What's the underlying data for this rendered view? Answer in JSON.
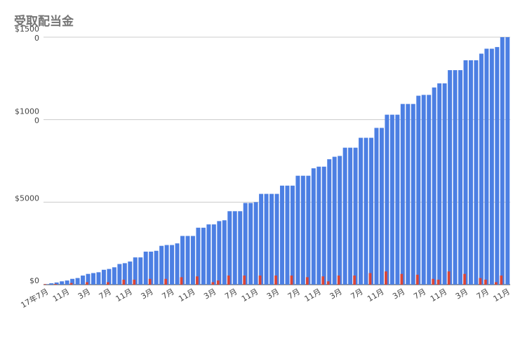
{
  "chart_data": {
    "type": "bar",
    "title": "受取配当金",
    "categories": [
      "17年7月",
      null,
      null,
      null,
      "11月",
      null,
      null,
      null,
      "3月",
      null,
      null,
      null,
      "7月",
      null,
      null,
      null,
      "11月",
      null,
      null,
      null,
      "3月",
      null,
      null,
      null,
      "7月",
      null,
      null,
      null,
      "11月",
      null,
      null,
      null,
      "3月",
      null,
      null,
      null,
      "7月",
      null,
      null,
      null,
      "11月",
      null,
      null,
      null,
      "3月",
      null,
      null,
      null,
      "7月",
      null,
      null,
      null,
      "11月",
      null,
      null,
      null,
      "3月",
      null,
      null,
      null,
      "7月",
      null,
      null,
      null,
      "11月",
      null,
      null,
      null,
      "3月",
      null,
      null,
      null,
      "7月",
      null,
      null,
      null,
      "11月",
      null,
      null,
      null,
      "3月",
      null,
      null,
      null,
      "7月",
      null,
      null,
      null,
      "11月"
    ],
    "series": [
      {
        "color": "#4c7fe3",
        "values": [
          30,
          80,
          130,
          200,
          250,
          350,
          400,
          550,
          650,
          700,
          750,
          900,
          950,
          1050,
          1250,
          1300,
          1400,
          1650,
          1650,
          2000,
          2000,
          2050,
          2350,
          2400,
          2400,
          2500,
          2950,
          2950,
          2950,
          3450,
          3450,
          3650,
          3650,
          3850,
          3900,
          4450,
          4450,
          4450,
          4950,
          4950,
          5000,
          5500,
          5500,
          5500,
          5500,
          6000,
          6000,
          6000,
          6600,
          6600,
          6600,
          7050,
          7150,
          7150,
          7600,
          7750,
          7800,
          8300,
          8300,
          8300,
          8900,
          8900,
          8900,
          9500,
          9500,
          10300,
          10300,
          10300,
          10950,
          10950,
          10950,
          11450,
          11500,
          11500,
          11950,
          12200,
          12200,
          13000,
          13000,
          13000,
          13600,
          13600,
          13600,
          14000,
          14300,
          14300,
          14400,
          15000,
          15000
        ]
      },
      {
        "color": "#db4437",
        "values": [
          30,
          0,
          40,
          0,
          0,
          100,
          0,
          0,
          150,
          0,
          0,
          0,
          150,
          0,
          0,
          300,
          0,
          300,
          0,
          0,
          350,
          0,
          0,
          350,
          0,
          0,
          450,
          0,
          0,
          500,
          0,
          0,
          150,
          250,
          0,
          550,
          0,
          0,
          550,
          0,
          0,
          550,
          0,
          0,
          550,
          0,
          0,
          550,
          0,
          0,
          450,
          0,
          0,
          500,
          200,
          0,
          550,
          0,
          0,
          550,
          0,
          0,
          700,
          0,
          0,
          800,
          0,
          0,
          650,
          0,
          0,
          600,
          0,
          0,
          350,
          300,
          0,
          800,
          0,
          0,
          650,
          0,
          0,
          400,
          300,
          0,
          150,
          550,
          0
        ]
      }
    ],
    "ylim": [
      0,
      15000
    ],
    "yticks": [
      {
        "value": 0,
        "label": "$0"
      },
      {
        "value": 5000,
        "label": "$5000"
      },
      {
        "value": 10000,
        "label": "$10000"
      },
      {
        "value": 15000,
        "label": "$15000"
      }
    ],
    "grid": true
  }
}
